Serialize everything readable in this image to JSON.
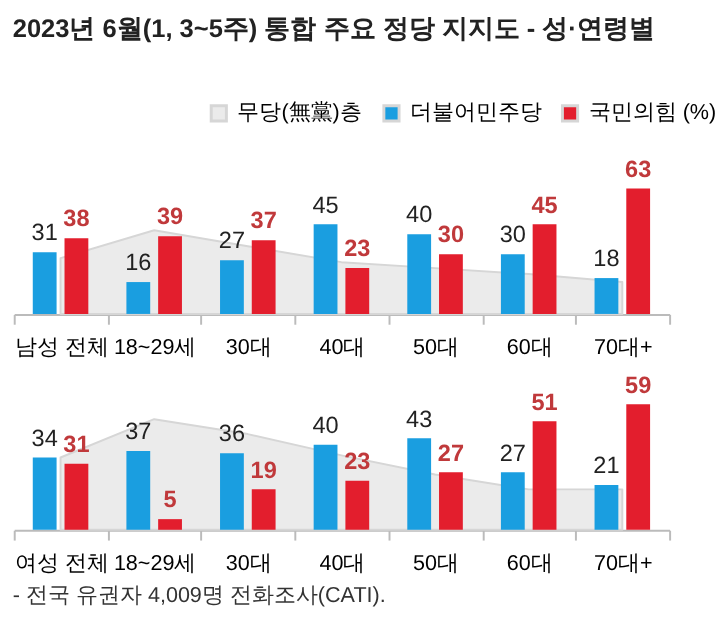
{
  "chart_data": [
    {
      "type": "bar",
      "title": "2023년 6월(1, 3~5주) 통합 주요 정당 지지도 - 성·연령별",
      "legend": "top right",
      "grid": false,
      "categories": [
        "남성 전체",
        "18~29세",
        "30대",
        "40대",
        "50대",
        "60대",
        "70대+"
      ],
      "series": [
        {
          "name": "무당(無黨)층",
          "type": "area",
          "color": "#ebebeb",
          "values": [
            28,
            42,
            34,
            26,
            23,
            20,
            16
          ]
        },
        {
          "name": "더불어민주당",
          "color": "#1a9ee0",
          "values": [
            31,
            16,
            27,
            45,
            40,
            30,
            18
          ],
          "value_labels": [
            "31",
            "16",
            "27",
            "45",
            "40",
            "30",
            "18"
          ]
        },
        {
          "name": "국민의힘 (%)",
          "color": "#e31e2d",
          "values": [
            38,
            39,
            37,
            23,
            30,
            45,
            63
          ],
          "value_labels": [
            "38",
            "39",
            "37",
            "23",
            "30",
            "45",
            "63"
          ]
        }
      ]
    },
    {
      "type": "bar",
      "grid": false,
      "categories": [
        "여성 전체",
        "18~29세",
        "30대",
        "40대",
        "50대",
        "60대",
        "70대+"
      ],
      "series": [
        {
          "type": "area",
          "color": "#ebebeb",
          "values": [
            34,
            52,
            45,
            35,
            26,
            19,
            19
          ]
        },
        {
          "color": "#1a9ee0",
          "values": [
            34,
            37,
            36,
            40,
            43,
            27,
            21
          ],
          "value_labels": [
            "34",
            "37",
            "36",
            "40",
            "43",
            "27",
            "21"
          ]
        },
        {
          "color": "#e31e2d",
          "values": [
            31,
            5,
            19,
            23,
            27,
            51,
            59
          ],
          "value_labels": [
            "31",
            "5",
            "19",
            "23",
            "27",
            "51",
            "59"
          ]
        }
      ],
      "annotations": [
        "- 전국 유권자 4,009명 전화조사(CATI)."
      ]
    }
  ]
}
